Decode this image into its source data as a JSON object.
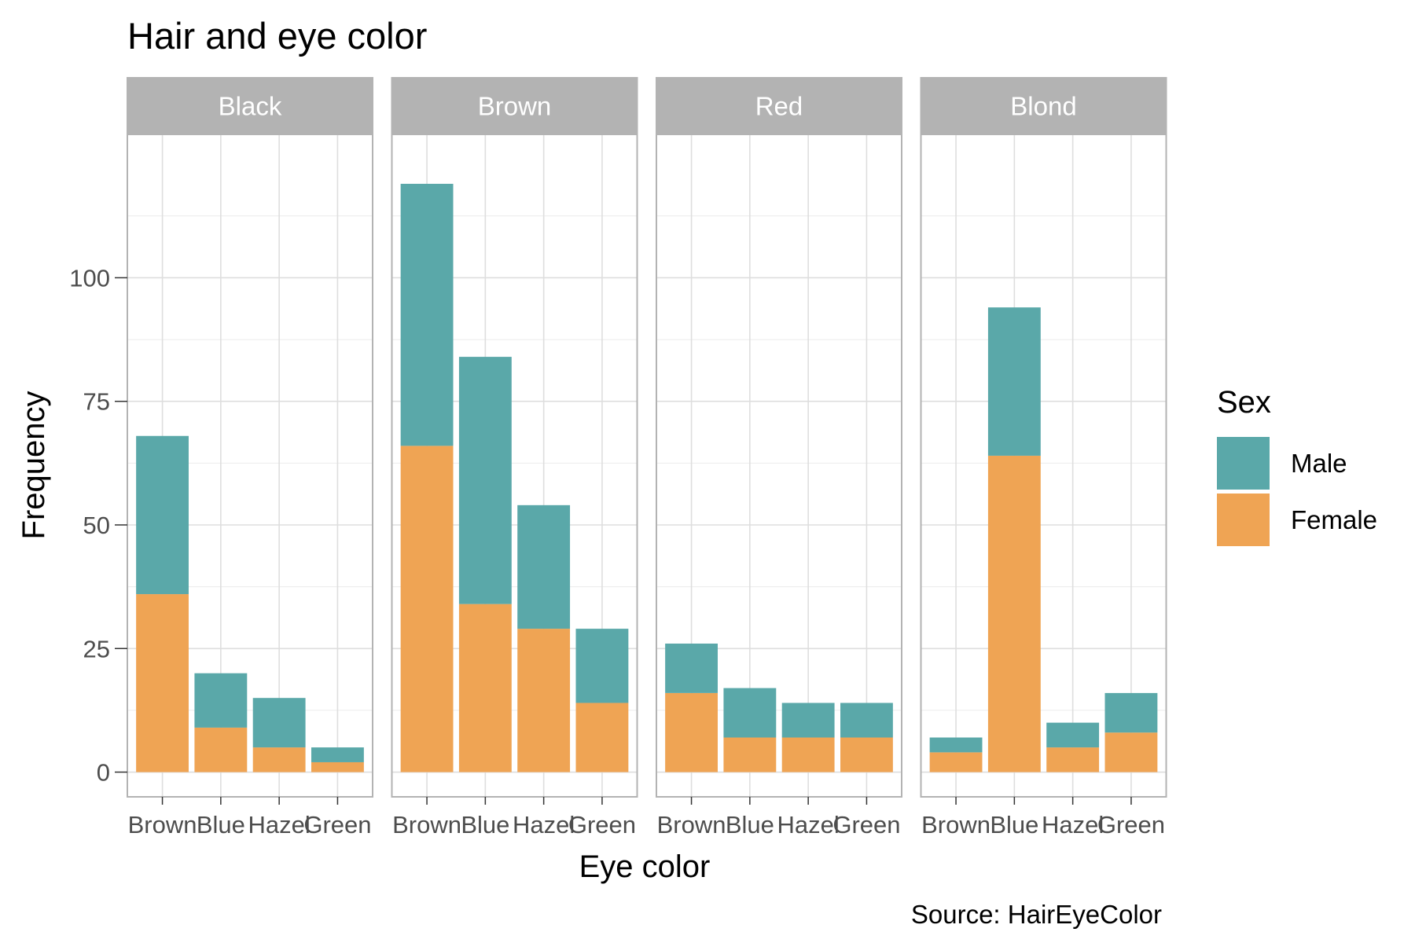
{
  "chart_data": {
    "type": "bar",
    "stacked": true,
    "title": "Hair and eye color",
    "caption": "Source: HairEyeColor",
    "xlabel": "Eye color",
    "ylabel": "Frequency",
    "ylim": [
      -5,
      129
    ],
    "yticks": [
      0,
      25,
      50,
      75,
      100
    ],
    "grid": true,
    "legend": {
      "title": "Sex",
      "position": "right"
    },
    "facet_by": "Hair color",
    "facets": [
      "Black",
      "Brown",
      "Red",
      "Blond"
    ],
    "categories": [
      "Brown",
      "Blue",
      "Hazel",
      "Green"
    ],
    "series": [
      {
        "name": "Female",
        "color": "#EFA454",
        "values": {
          "Black": [
            36,
            9,
            5,
            2
          ],
          "Brown": [
            66,
            34,
            29,
            14
          ],
          "Red": [
            16,
            7,
            7,
            7
          ],
          "Blond": [
            4,
            64,
            5,
            8
          ]
        }
      },
      {
        "name": "Male",
        "color": "#5AA8A9",
        "values": {
          "Black": [
            32,
            11,
            10,
            3
          ],
          "Brown": [
            53,
            50,
            25,
            15
          ],
          "Red": [
            10,
            10,
            7,
            7
          ],
          "Blond": [
            3,
            30,
            5,
            8
          ]
        }
      }
    ],
    "legend_order": [
      "Male",
      "Female"
    ]
  }
}
